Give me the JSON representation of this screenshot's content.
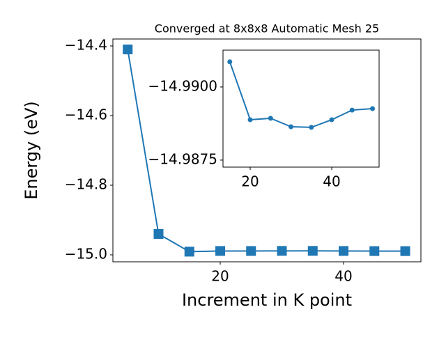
{
  "chart_data": [
    {
      "type": "line",
      "title": "Converged at 8x8x8 Automatic Mesh 25",
      "x_label": "Increment in K point",
      "y_label": "Energy (eV)",
      "x": [
        5,
        10,
        15,
        20,
        25,
        30,
        35,
        40,
        45,
        50
      ],
      "series": [
        {
          "color": "#1f77b4",
          "marker": "square",
          "values": [
            -14.41,
            -14.94,
            -14.99086,
            -14.98888,
            -14.98893,
            -14.98864,
            -14.98862,
            -14.98888,
            -14.98921,
            -14.98926
          ]
        }
      ],
      "xlim": [
        2.6,
        52.54
      ],
      "ylim": [
        -15.02,
        -14.38
      ],
      "xticks": [
        20,
        40
      ],
      "yticks": [
        {
          "value": -14.4,
          "label": "−14.4"
        },
        {
          "value": -14.6,
          "label": "−14.6"
        },
        {
          "value": -14.8,
          "label": "−14.8"
        },
        {
          "value": -15.0,
          "label": "−15.0"
        }
      ]
    },
    {
      "type": "line",
      "x": [
        15,
        20,
        25,
        30,
        35,
        40,
        45,
        50
      ],
      "series": [
        {
          "color": "#1f77b4",
          "marker": "circle",
          "values": [
            -14.99086,
            -14.98888,
            -14.98893,
            -14.98864,
            -14.98862,
            -14.98888,
            -14.98921,
            -14.98926
          ]
        }
      ],
      "xlim": [
        13.33,
        51.62
      ],
      "ylim": [
        -14.99126,
        -14.98726
      ],
      "y_inverted": true,
      "xticks": [
        20,
        40
      ],
      "yticks": [
        {
          "value": -14.99,
          "label": "−14.9900"
        },
        {
          "value": -14.9875,
          "label": "−14.9875"
        }
      ]
    }
  ]
}
